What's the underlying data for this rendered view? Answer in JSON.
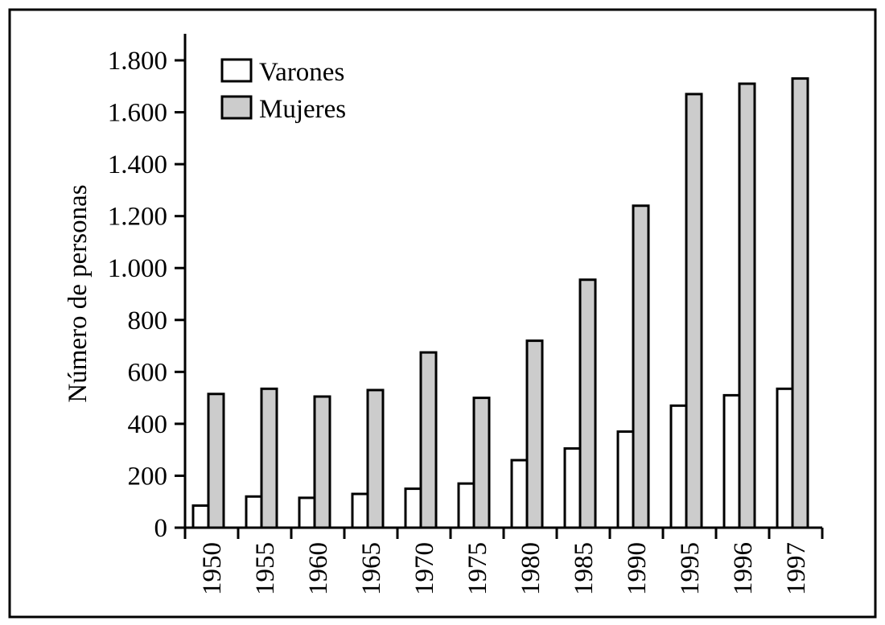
{
  "chart_data": {
    "type": "bar",
    "ylabel": "Número de personas",
    "xlabel": "",
    "ylim": [
      0,
      1800
    ],
    "yticks": [
      0,
      200,
      400,
      600,
      800,
      1000,
      1200,
      1400,
      1600,
      1800
    ],
    "ytick_labels": [
      "0",
      "200",
      "400",
      "600",
      "800",
      "1.000",
      "1.200",
      "1.400",
      "1.600",
      "1.800"
    ],
    "categories": [
      "1950",
      "1955",
      "1960",
      "1965",
      "1970",
      "1975",
      "1980",
      "1985",
      "1990",
      "1995",
      "1996",
      "1997"
    ],
    "series": [
      {
        "name": "Varones",
        "color": "#ffffff",
        "values": [
          85,
          120,
          115,
          130,
          150,
          170,
          260,
          305,
          370,
          470,
          510,
          535
        ]
      },
      {
        "name": "Mujeres",
        "color": "#cccccc",
        "values": [
          515,
          535,
          505,
          530,
          675,
          500,
          720,
          955,
          1240,
          1670,
          1710,
          1730
        ]
      }
    ],
    "legend_position": "top-left",
    "grid": false
  }
}
